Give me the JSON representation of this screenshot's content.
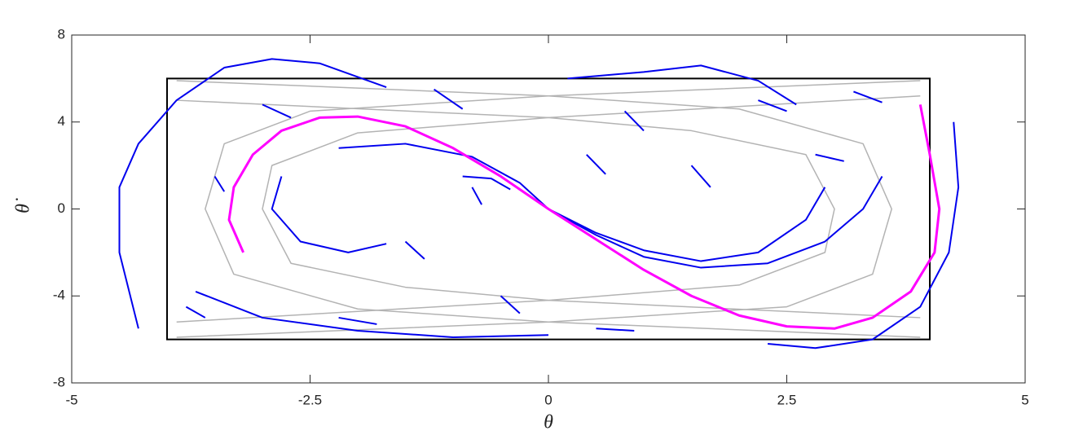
{
  "chart_data": {
    "type": "line",
    "x_label": "θ",
    "y_label": "θ̇",
    "xlim": [
      -5,
      5
    ],
    "ylim": [
      -8,
      8
    ],
    "xticks": [
      -5,
      -2.5,
      0,
      2.5,
      5
    ],
    "yticks": [
      -8,
      -4,
      0,
      4,
      8
    ],
    "box": {
      "x": [
        -4,
        4
      ],
      "y": [
        -6,
        6
      ],
      "color": "#000000"
    },
    "series": [
      {
        "color": "#b3b3b3",
        "x": [
          3.9,
          0,
          -2.5,
          -3.4,
          -3.6,
          -3.3,
          -2,
          0,
          3.9
        ],
        "values": [
          5.9,
          5.2,
          4.5,
          3,
          0,
          -3,
          -4.6,
          -5.2,
          -5.9
        ]
      },
      {
        "color": "#b3b3b3",
        "x": [
          3.9,
          0,
          -2,
          -2.9,
          -3,
          -2.7,
          -1.5,
          0,
          3.9
        ],
        "values": [
          5.2,
          4.2,
          3.5,
          2,
          0,
          -2.5,
          -3.6,
          -4.2,
          -5.0
        ]
      },
      {
        "color": "#b3b3b3",
        "x": [
          -3.9,
          0,
          2.5,
          3.4,
          3.6,
          3.3,
          2,
          0,
          -3.9
        ],
        "values": [
          -5.9,
          -5.2,
          -4.5,
          -3,
          0,
          3,
          4.6,
          5.2,
          5.9
        ]
      },
      {
        "color": "#b3b3b3",
        "x": [
          -3.9,
          0,
          2,
          2.9,
          3,
          2.7,
          1.5,
          0,
          -3.9
        ],
        "values": [
          -5.2,
          -4.2,
          -3.5,
          -2,
          0,
          2.5,
          3.6,
          4.2,
          5.0
        ]
      },
      {
        "color": "#0000ee",
        "x": [
          3.5,
          3.3,
          2.9,
          2.3,
          1.6,
          1.0,
          0.5,
          0
        ],
        "values": [
          1.5,
          0,
          -1.5,
          -2.5,
          -2.7,
          -2.2,
          -1.2,
          0
        ]
      },
      {
        "color": "#0000ee",
        "x": [
          2.9,
          2.7,
          2.2,
          1.6,
          1.0,
          0.5,
          0
        ],
        "values": [
          1.0,
          -0.5,
          -2.0,
          -2.4,
          -1.9,
          -1.1,
          0
        ]
      },
      {
        "color": "#0000ee",
        "x": [
          -2.8,
          -2.9,
          -2.6,
          -2.1,
          -1.7
        ],
        "values": [
          1.5,
          0,
          -1.5,
          -2.0,
          -1.6
        ]
      },
      {
        "color": "#0000ee",
        "x": [
          -2.2,
          -1.5,
          -0.8,
          -0.3,
          0
        ],
        "values": [
          2.8,
          3.0,
          2.4,
          1.2,
          0
        ]
      },
      {
        "color": "#0000ee",
        "x": [
          -0.9,
          -0.6,
          -0.4
        ],
        "values": [
          1.5,
          1.4,
          0.9
        ]
      },
      {
        "color": "#0000ee",
        "x": [
          -4.3,
          -4.5,
          -4.5,
          -4.3,
          -3.9,
          -3.4,
          -2.9,
          -2.4,
          -1.7
        ],
        "values": [
          -5.5,
          -2,
          1,
          3,
          5,
          6.5,
          6.9,
          6.7,
          5.6
        ]
      },
      {
        "color": "#0000ee",
        "x": [
          4.25,
          4.3,
          4.2,
          3.9,
          3.4,
          2.8,
          2.3
        ],
        "values": [
          4,
          1,
          -2,
          -4.5,
          -6,
          -6.4,
          -6.2
        ]
      },
      {
        "color": "#0000ee",
        "x": [
          0.2,
          1,
          1.6,
          2.2,
          2.6
        ],
        "values": [
          6,
          6.3,
          6.6,
          5.9,
          4.8
        ]
      },
      {
        "color": "#0000ee",
        "x": [
          -3.7,
          -3,
          -2,
          -1,
          0
        ],
        "values": [
          -3.8,
          -5,
          -5.6,
          -5.9,
          -5.8
        ]
      },
      {
        "color": "#0000ee",
        "x": [
          -3.8,
          -3.6
        ],
        "values": [
          -4.5,
          -5.0
        ]
      },
      {
        "color": "#0000ee",
        "x": [
          -3.0,
          -2.7
        ],
        "values": [
          4.8,
          4.2
        ]
      },
      {
        "color": "#0000ee",
        "x": [
          -1.2,
          -0.9
        ],
        "values": [
          5.5,
          4.6
        ]
      },
      {
        "color": "#0000ee",
        "x": [
          -0.5,
          -0.3
        ],
        "values": [
          -4,
          -4.8
        ]
      },
      {
        "color": "#0000ee",
        "x": [
          0.8,
          1.0
        ],
        "values": [
          4.5,
          3.6
        ]
      },
      {
        "color": "#0000ee",
        "x": [
          1.5,
          1.7
        ],
        "values": [
          2,
          1.0
        ]
      },
      {
        "color": "#0000ee",
        "x": [
          2.2,
          2.5
        ],
        "values": [
          5,
          4.5
        ]
      },
      {
        "color": "#0000ee",
        "x": [
          3.2,
          3.5
        ],
        "values": [
          5.4,
          4.9
        ]
      },
      {
        "color": "#0000ee",
        "x": [
          -2.2,
          -1.8
        ],
        "values": [
          -5,
          -5.3
        ]
      },
      {
        "color": "#0000ee",
        "x": [
          0.5,
          0.9
        ],
        "values": [
          -5.5,
          -5.6
        ]
      },
      {
        "color": "#0000ee",
        "x": [
          -0.8,
          -0.7
        ],
        "values": [
          1,
          0.2
        ]
      },
      {
        "color": "#0000ee",
        "x": [
          0.4,
          0.6
        ],
        "values": [
          2.5,
          1.6
        ]
      },
      {
        "color": "#0000ee",
        "x": [
          -1.5,
          -1.3
        ],
        "values": [
          -1.5,
          -2.3
        ]
      },
      {
        "color": "#0000ee",
        "x": [
          2.8,
          3.1
        ],
        "values": [
          2.5,
          2.2
        ]
      },
      {
        "color": "#0000ee",
        "x": [
          -3.5,
          -3.4
        ],
        "values": [
          1.5,
          0.8
        ]
      },
      {
        "color": "#ff00ff",
        "x": [
          -3.2,
          -3.35,
          -3.3,
          -3.1,
          -2.8,
          -2.4,
          -2.0,
          -1.5,
          -1.0,
          -0.5,
          0,
          0.5,
          1,
          1.5,
          2.0,
          2.5,
          3.0,
          3.4,
          3.8,
          4.05,
          4.1,
          4.0,
          3.9
        ],
        "values": [
          -2.0,
          -0.5,
          1,
          2.5,
          3.6,
          4.2,
          4.25,
          3.8,
          2.8,
          1.5,
          0,
          -1.4,
          -2.8,
          -4.0,
          -4.9,
          -5.4,
          -5.5,
          -5.0,
          -3.8,
          -2.0,
          0,
          2.5,
          4.8
        ]
      }
    ]
  }
}
